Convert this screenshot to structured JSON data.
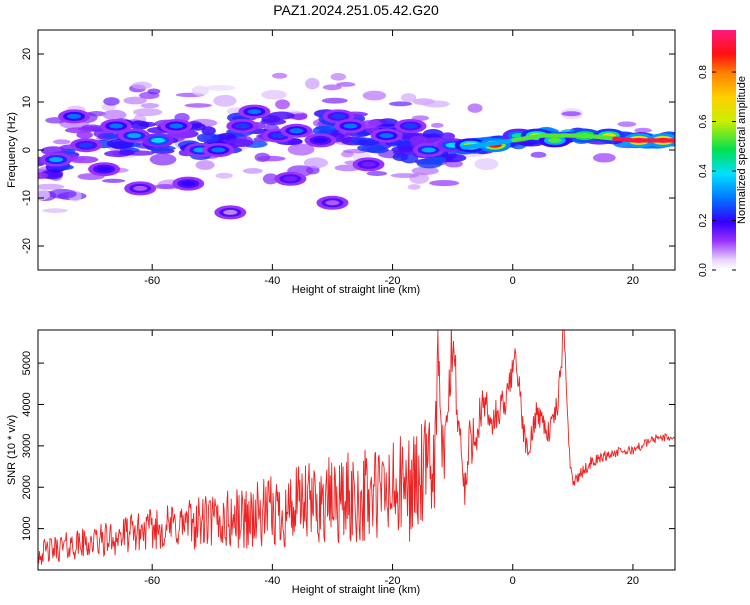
{
  "title": "PAZ1.2024.251.05.42.G20",
  "chart_data": [
    {
      "type": "heatmap",
      "xlabel": "Height of straight line (km)",
      "ylabel": "Frequency (Hz)",
      "xlim": [
        -79,
        27
      ],
      "ylim": [
        -25,
        25
      ],
      "xticks": [
        -60,
        -40,
        -20,
        0,
        20
      ],
      "yticks": [
        -20,
        -10,
        0,
        10,
        20
      ],
      "colorbar": {
        "label": "Normalized spectral amplitude",
        "range": [
          0,
          0.97
        ],
        "ticks": [
          0.0,
          0.2,
          0.4,
          0.6,
          0.8
        ]
      },
      "ridge": [
        [
          -78,
          -3
        ],
        [
          -70,
          2
        ],
        [
          -60,
          3
        ],
        [
          -50,
          2
        ],
        [
          -42,
          5
        ],
        [
          -35,
          4
        ],
        [
          -28,
          5
        ],
        [
          -20,
          2
        ],
        [
          -12,
          0
        ],
        [
          -5,
          1
        ],
        [
          0,
          2
        ],
        [
          5,
          3
        ],
        [
          12,
          3
        ],
        [
          20,
          2
        ],
        [
          27,
          2
        ]
      ],
      "blobs": [
        {
          "x": -76,
          "y": -2,
          "a": 0.35
        },
        {
          "x": -73,
          "y": 7,
          "a": 0.3
        },
        {
          "x": -71,
          "y": 1,
          "a": 0.25
        },
        {
          "x": -68,
          "y": -4,
          "a": 0.2
        },
        {
          "x": -66,
          "y": 5,
          "a": 0.3
        },
        {
          "x": -63,
          "y": 3,
          "a": 0.35
        },
        {
          "x": -59,
          "y": 2,
          "a": 0.4
        },
        {
          "x": -56,
          "y": 5,
          "a": 0.3
        },
        {
          "x": -52,
          "y": 0,
          "a": 0.35
        },
        {
          "x": -49,
          "y": 0,
          "a": 0.3
        },
        {
          "x": -45,
          "y": 5,
          "a": 0.25
        },
        {
          "x": -43,
          "y": 8,
          "a": 0.3
        },
        {
          "x": -39,
          "y": 3,
          "a": 0.25
        },
        {
          "x": -36,
          "y": 4,
          "a": 0.3
        },
        {
          "x": -32,
          "y": 2,
          "a": 0.2
        },
        {
          "x": -29,
          "y": 7,
          "a": 0.25
        },
        {
          "x": -27,
          "y": 5,
          "a": 0.3
        },
        {
          "x": -24,
          "y": -3,
          "a": 0.15
        },
        {
          "x": -21,
          "y": 3,
          "a": 0.3
        },
        {
          "x": -17,
          "y": 5,
          "a": 0.25
        },
        {
          "x": -14,
          "y": 0,
          "a": 0.35
        },
        {
          "x": -10,
          "y": 1,
          "a": 0.4
        },
        {
          "x": -7,
          "y": 1,
          "a": 0.6
        },
        {
          "x": -3,
          "y": 1,
          "a": 0.9
        },
        {
          "x": 1,
          "y": 3,
          "a": 0.45
        },
        {
          "x": 4,
          "y": 3,
          "a": 0.65
        },
        {
          "x": 7,
          "y": 2,
          "a": 0.55
        },
        {
          "x": 12,
          "y": 3,
          "a": 0.75
        },
        {
          "x": 16,
          "y": 3,
          "a": 0.7
        },
        {
          "x": 21,
          "y": 2,
          "a": 0.97
        },
        {
          "x": 25,
          "y": 2,
          "a": 0.95
        },
        {
          "x": -54,
          "y": -7,
          "a": 0.2
        },
        {
          "x": -37,
          "y": -6,
          "a": 0.15
        },
        {
          "x": -30,
          "y": -11,
          "a": 0.1
        },
        {
          "x": -47,
          "y": -13,
          "a": 0.08
        },
        {
          "x": -62,
          "y": -8,
          "a": 0.1
        }
      ]
    },
    {
      "type": "line",
      "xlabel": "Height of straight line (km)",
      "ylabel": "SNR (10 * v/v)",
      "xlim": [
        -79,
        27
      ],
      "ylim": [
        0,
        5800
      ],
      "xticks": [
        -60,
        -40,
        -20,
        0,
        20
      ],
      "yticks": [
        1000,
        2000,
        3000,
        4000,
        5000
      ],
      "series": [
        {
          "color": "#ee2222",
          "points": [
            [
              -79,
              400
            ],
            [
              -75,
              550
            ],
            [
              -71,
              650
            ],
            [
              -67,
              750
            ],
            [
              -63,
              900
            ],
            [
              -59,
              1000
            ],
            [
              -55,
              1100
            ],
            [
              -51,
              1150
            ],
            [
              -47,
              1200
            ],
            [
              -43,
              1300
            ],
            [
              -39,
              1400
            ],
            [
              -35,
              1550
            ],
            [
              -31,
              1650
            ],
            [
              -27,
              1700
            ],
            [
              -23,
              1800
            ],
            [
              -19,
              1900
            ],
            [
              -16,
              2100
            ],
            [
              -13,
              2500
            ],
            [
              -12.5,
              5200
            ],
            [
              -11.5,
              2300
            ],
            [
              -10,
              5600
            ],
            [
              -9,
              3600
            ],
            [
              -8,
              1800
            ],
            [
              -7,
              3200
            ],
            [
              -5,
              3800
            ],
            [
              -3,
              3600
            ],
            [
              -1,
              4100
            ],
            [
              0.5,
              5300
            ],
            [
              1.5,
              3700
            ],
            [
              2.5,
              2700
            ],
            [
              4,
              3900
            ],
            [
              6,
              3300
            ],
            [
              7.5,
              4000
            ],
            [
              8.5,
              5800
            ],
            [
              9.5,
              2700
            ],
            [
              10,
              2100
            ],
            [
              13,
              2600
            ],
            [
              16,
              2800
            ],
            [
              20,
              2900
            ],
            [
              24,
              3200
            ],
            [
              27,
              3200
            ]
          ],
          "noise_amplitude": [
            [
              -79,
              300
            ],
            [
              -60,
              500
            ],
            [
              -45,
              800
            ],
            [
              -30,
              1100
            ],
            [
              -20,
              1300
            ],
            [
              -15,
              1400
            ],
            [
              -11,
              900
            ],
            [
              -6,
              700
            ],
            [
              0,
              350
            ],
            [
              9,
              300
            ],
            [
              10,
              150
            ],
            [
              27,
              90
            ]
          ]
        }
      ]
    }
  ]
}
